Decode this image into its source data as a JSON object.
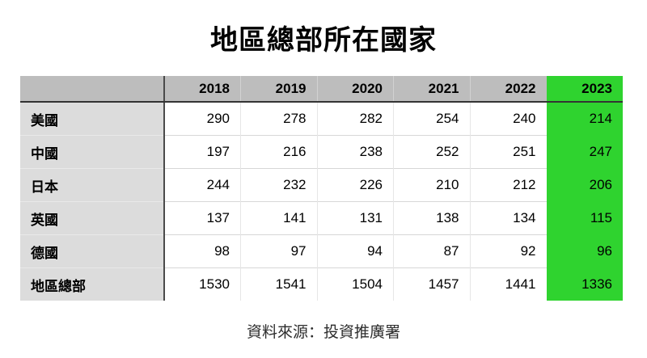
{
  "title": "地區總部所在國家",
  "source": "資料來源：投資推廣署",
  "colors": {
    "header_bg": "#bdbdbd",
    "label_bg": "#dcdcdc",
    "highlight_bg": "#2fd32f",
    "header_rule": "#333333",
    "text": "#000000"
  },
  "chart_data": {
    "type": "table",
    "title": "地區總部所在國家",
    "categories": [
      "2018",
      "2019",
      "2020",
      "2021",
      "2022",
      "2023"
    ],
    "series": [
      {
        "name": "美國",
        "values": [
          290,
          278,
          282,
          254,
          240,
          214
        ]
      },
      {
        "name": "中國",
        "values": [
          197,
          216,
          238,
          252,
          251,
          247
        ]
      },
      {
        "name": "日本",
        "values": [
          244,
          232,
          226,
          210,
          212,
          206
        ]
      },
      {
        "name": "英國",
        "values": [
          137,
          141,
          131,
          138,
          134,
          115
        ]
      },
      {
        "name": "德國",
        "values": [
          98,
          97,
          94,
          87,
          92,
          96
        ]
      },
      {
        "name": "地區總部",
        "values": [
          1530,
          1541,
          1504,
          1457,
          1441,
          1336
        ]
      }
    ],
    "highlight_column": "2023",
    "source": "資料來源：投資推廣署"
  }
}
